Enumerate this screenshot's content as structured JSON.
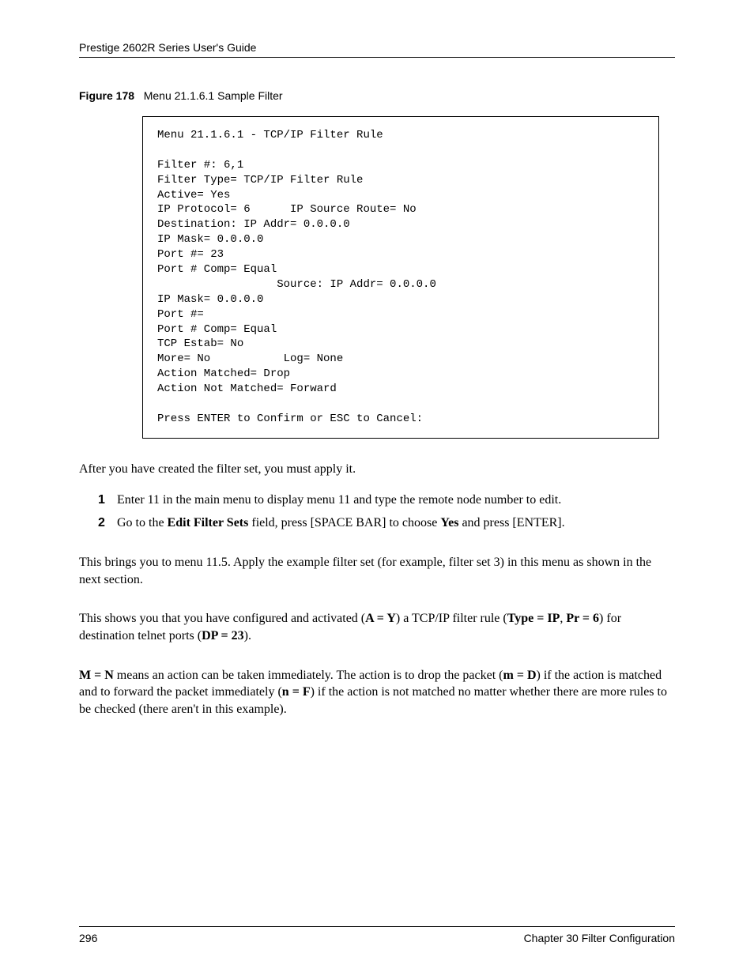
{
  "header": {
    "title": "Prestige 2602R Series User's Guide"
  },
  "figure": {
    "label": "Figure 178",
    "caption": "Menu 21.1.6.1 Sample Filter",
    "code": "Menu 21.1.6.1 - TCP/IP Filter Rule\n\nFilter #: 6,1\nFilter Type= TCP/IP Filter Rule\nActive= Yes\nIP Protocol= 6      IP Source Route= No\nDestination: IP Addr= 0.0.0.0\nIP Mask= 0.0.0.0\nPort #= 23\nPort # Comp= Equal\n                  Source: IP Addr= 0.0.0.0\nIP Mask= 0.0.0.0\nPort #=\nPort # Comp= Equal\nTCP Estab= No\nMore= No           Log= None\nAction Matched= Drop\nAction Not Matched= Forward\n\nPress ENTER to Confirm or ESC to Cancel:"
  },
  "paragraphs": {
    "p1": "After you have created the filter set, you must apply it.",
    "p2": "This brings you to menu 11.5. Apply the example filter set  (for example, filter set 3) in this menu as shown in the next section.",
    "p3_a": "This shows you that you have configured and activated (",
    "p3_b": "A = Y",
    "p3_c": ") a TCP/IP filter rule (",
    "p3_d": "Type = IP",
    "p3_e": ", ",
    "p3_f": "Pr = 6",
    "p3_g": ") for destination telnet ports (",
    "p3_h": "DP = 23",
    "p3_i": ").",
    "p4_a": "M = N",
    "p4_b": " means an action can be taken immediately. The action is to drop the packet (",
    "p4_c": "m = D",
    "p4_d": ") if the action is matched and to forward the packet immediately (",
    "p4_e": "n = F",
    "p4_f": ") if the action is not matched no matter whether there are more rules to be checked (there aren't in this example)."
  },
  "steps": {
    "s1_num": "1",
    "s1_text": "Enter 11 in the main menu to display menu 11 and type the remote node number to edit.",
    "s2_num": "2",
    "s2_a": "Go to the ",
    "s2_b": "Edit Filter Sets",
    "s2_c": " field, press [SPACE BAR] to choose ",
    "s2_d": "Yes",
    "s2_e": " and press [ENTER]."
  },
  "footer": {
    "page_number": "296",
    "chapter": "Chapter 30 Filter Configuration"
  }
}
